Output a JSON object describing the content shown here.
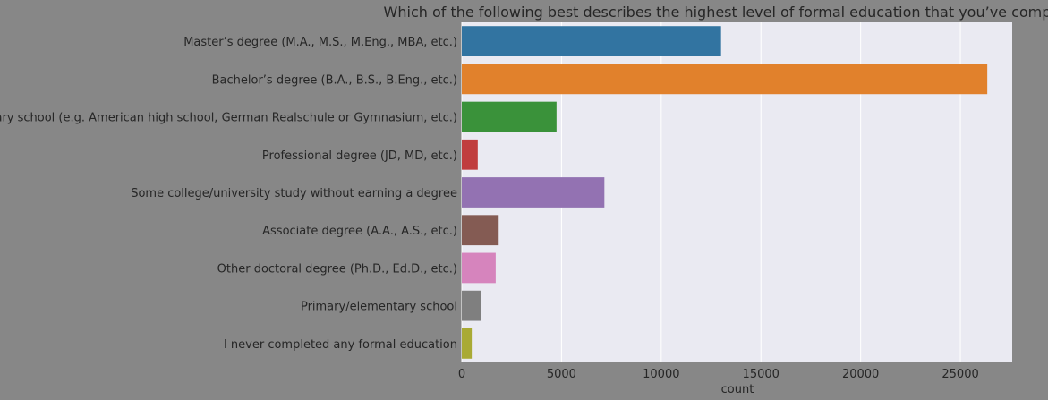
{
  "chart_data": {
    "type": "bar",
    "orientation": "horizontal",
    "title": "Which of the following best describes the highest level of formal education that you’ve completed?",
    "xlabel": "count",
    "ylabel": "",
    "xlim": [
      0,
      27600
    ],
    "xticks": [
      0,
      5000,
      10000,
      15000,
      20000,
      25000
    ],
    "grid": true,
    "categories": [
      "Master’s degree (M.A., M.S., M.Eng., MBA, etc.)",
      "Bachelor’s degree (B.A., B.S., B.Eng., etc.)",
      "Secondary school (e.g. American high school, German Realschule or Gymnasium, etc.)",
      "Professional degree (JD, MD, etc.)",
      "Some college/university study without earning a degree",
      "Associate degree (A.A., A.S., etc.)",
      "Other doctoral degree (Ph.D., Ed.D., etc.)",
      "Primary/elementary school",
      "I never completed any formal education"
    ],
    "values": [
      13000,
      26350,
      4750,
      800,
      7150,
      1850,
      1700,
      950,
      500
    ],
    "colors": [
      "#3274a1",
      "#e1812c",
      "#3a923a",
      "#c03d3e",
      "#9372b2",
      "#845b53",
      "#d684bd",
      "#7f7f7f",
      "#a9aa35"
    ]
  }
}
